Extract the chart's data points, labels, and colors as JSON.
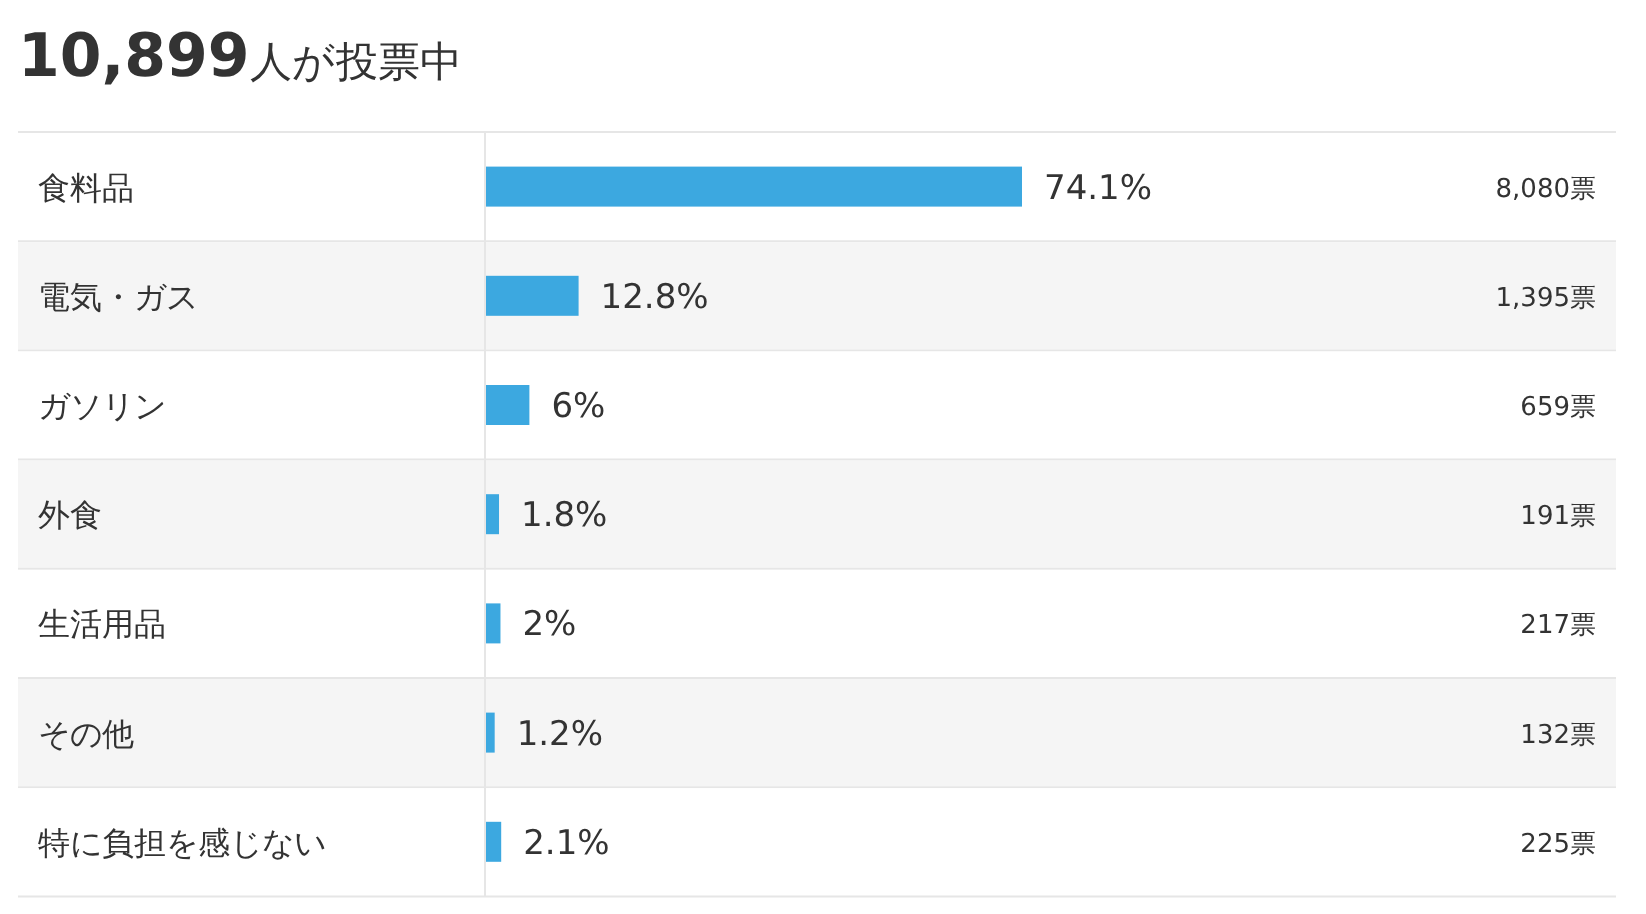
{
  "chart_data": {
    "type": "bar",
    "orientation": "horizontal",
    "title": "10,899人が投票中",
    "categories": [
      "食料品",
      "電気・ガス",
      "ガソリン",
      "外食",
      "生活用品",
      "その他",
      "特に負担を感じない"
    ],
    "values": [
      74.1,
      12.8,
      6,
      1.8,
      2,
      1.2,
      2.1
    ],
    "color": "#3ca8e0",
    "value_labels": [
      "74.1%",
      "12.8%",
      "6%",
      "1.8%",
      "2%",
      "1.2%",
      "2.1%"
    ],
    "annotations": [
      "8,080票",
      "1,395票",
      "659票",
      "191票",
      "217票",
      "132票",
      "225票"
    ]
  }
}
